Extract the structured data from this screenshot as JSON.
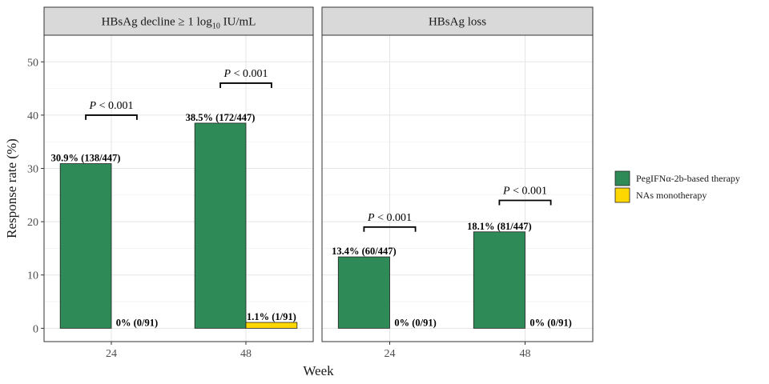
{
  "chart_data": {
    "type": "bar",
    "xlabel": "Week",
    "ylabel": "Response rate (%)",
    "ylim": [
      -2.5,
      55
    ],
    "yticks": [
      0,
      10,
      20,
      30,
      40,
      50
    ],
    "categories": [
      "24",
      "48"
    ],
    "grid": true,
    "legend_position": "right",
    "series": [
      {
        "name": "PegIFNα-2b-based therapy",
        "color": "#2e8b57"
      },
      {
        "name": "NAs monotherapy",
        "color": "#ffd700"
      }
    ],
    "panels": [
      {
        "title_prefix": "HBsAg decline ≥ 1 log",
        "title_sub": "10",
        "title_suffix": " IU/mL",
        "values": [
          [
            30.9,
            38.5
          ],
          [
            0,
            1.1
          ]
        ],
        "labels": [
          [
            "30.9% (138/447)",
            "38.5% (172/447)"
          ],
          [
            "0% (0/91)",
            "1.1% (1/91)"
          ]
        ],
        "pvalues": [
          {
            "category": "24",
            "p": "P",
            "rel": " < 0.001",
            "y": 40
          },
          {
            "category": "48",
            "p": "P",
            "rel": " < 0.001",
            "y": 46
          }
        ]
      },
      {
        "title_prefix": "HBsAg loss",
        "title_sub": "",
        "title_suffix": "",
        "values": [
          [
            13.4,
            18.1
          ],
          [
            0,
            0
          ]
        ],
        "labels": [
          [
            "13.4% (60/447)",
            "18.1% (81/447)"
          ],
          [
            "0% (0/91)",
            "0% (0/91)"
          ]
        ],
        "pvalues": [
          {
            "category": "24",
            "p": "P",
            "rel": " < 0.001",
            "y": 19
          },
          {
            "category": "48",
            "p": "P",
            "rel": " < 0.001",
            "y": 24
          }
        ]
      }
    ]
  }
}
